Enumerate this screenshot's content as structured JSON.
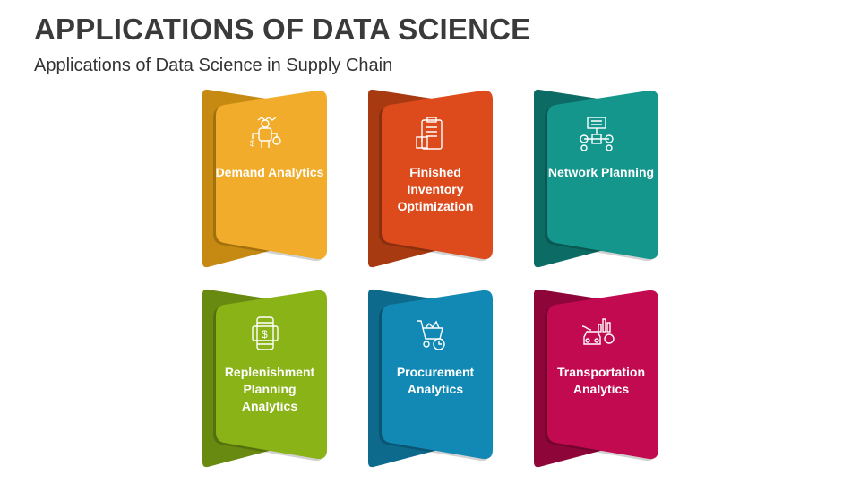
{
  "title": "APPLICATIONS OF DATA SCIENCE",
  "subtitle": "Applications of Data Science in Supply Chain",
  "cards": [
    {
      "label": "Demand Analytics",
      "icon": "person-analytics-icon",
      "color": "#F0AC2A",
      "shade": "#C68A12"
    },
    {
      "label": "Finished Inventory Optimization",
      "icon": "clipboard-inventory-icon",
      "color": "#DD4B1D",
      "shade": "#A83A12"
    },
    {
      "label": "Network Planning",
      "icon": "network-flowchart-icon",
      "color": "#14968C",
      "shade": "#0C6C65"
    },
    {
      "label": "Replenishment Planning Analytics",
      "icon": "mobile-dollar-icon",
      "color": "#8AB318",
      "shade": "#688A10"
    },
    {
      "label": "Procurement Analytics",
      "icon": "cart-clock-icon",
      "color": "#1289B5",
      "shade": "#0D6A8C"
    },
    {
      "label": "Transportation Analytics",
      "icon": "vehicle-chart-icon",
      "color": "#C20A50",
      "shade": "#8E0639"
    }
  ]
}
